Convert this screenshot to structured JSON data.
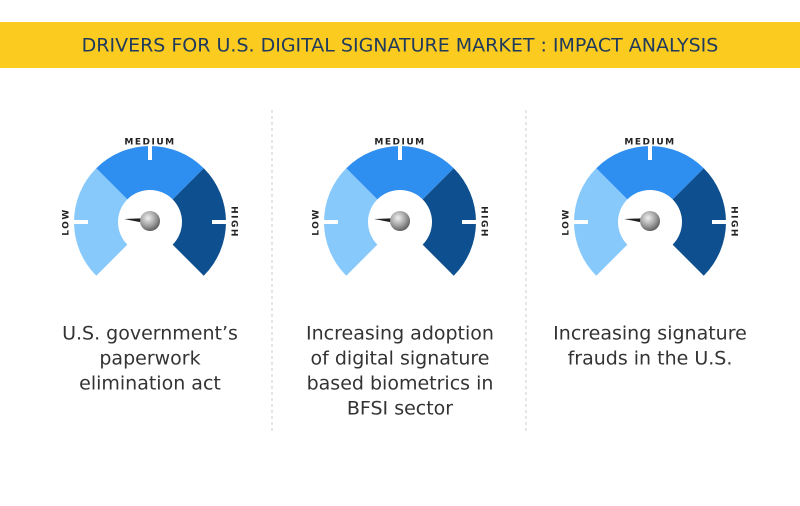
{
  "header": {
    "title": "DRIVERS FOR U.S. DIGITAL SIGNATURE MARKET : IMPACT ANALYSIS"
  },
  "drivers": [
    {
      "gauge": {
        "low": "LOW",
        "medium": "MEDIUM",
        "high": "HIGH"
      },
      "caption": [
        "U.S. government’s",
        "paperwork",
        "elimination act"
      ]
    },
    {
      "gauge": {
        "low": "LOW",
        "medium": "MEDIUM",
        "high": "HIGH"
      },
      "caption": [
        "Increasing adoption",
        "of digital signature",
        "based biometrics in",
        "BFSI sector"
      ]
    },
    {
      "gauge": {
        "low": "LOW",
        "medium": "MEDIUM",
        "high": "HIGH"
      },
      "caption": [
        "Increasing signature",
        "frauds in the U.S."
      ]
    }
  ]
}
